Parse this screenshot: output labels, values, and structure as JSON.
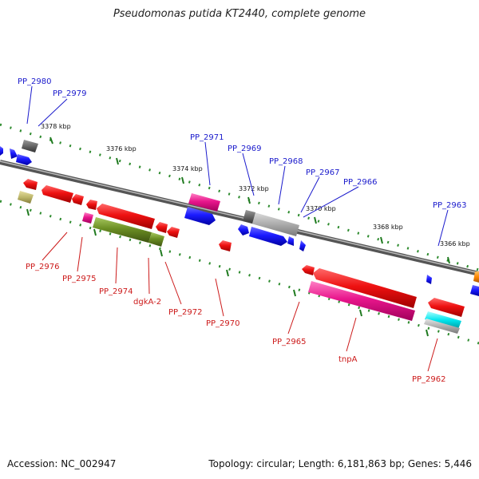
{
  "title": "Pseudomonas putida KT2440, complete genome",
  "footer": {
    "accession": "Accession: NC_002947",
    "summary": "Topology: circular; Length: 6,181,863 bp; Genes: 5,446"
  },
  "scale_labels": [
    "3378 kbp",
    "3376 kbp",
    "3374 kbp",
    "3372 kbp",
    "3370 kbp",
    "3368 kbp",
    "3366 kbp"
  ],
  "top_labels": [
    "PP_2980",
    "PP_2979",
    "PP_2971",
    "PP_2969",
    "PP_2968",
    "PP_2967",
    "PP_2966",
    "PP_2963"
  ],
  "bottom_labels": [
    "PP_2976",
    "PP_2975",
    "PP_2974",
    "dgkA-2",
    "PP_2972",
    "PP_2970",
    "PP_2965",
    "tnpA",
    "PP_2962"
  ],
  "colors": {
    "backbone": "#7a7a7a",
    "scale_dots": "#2e8b2e",
    "top_label": "#1a1acc",
    "bottom_label": "#cc1a1a",
    "gene_red": "#ee1111",
    "gene_blue": "#1a1aff",
    "gene_pink": "#e8168c",
    "gene_gray": "#a0a0a0",
    "gene_olive": "#6b8e23",
    "gene_khaki": "#bdb76b",
    "gene_cyan": "#00e5ee",
    "gene_orange": "#ff8800"
  }
}
